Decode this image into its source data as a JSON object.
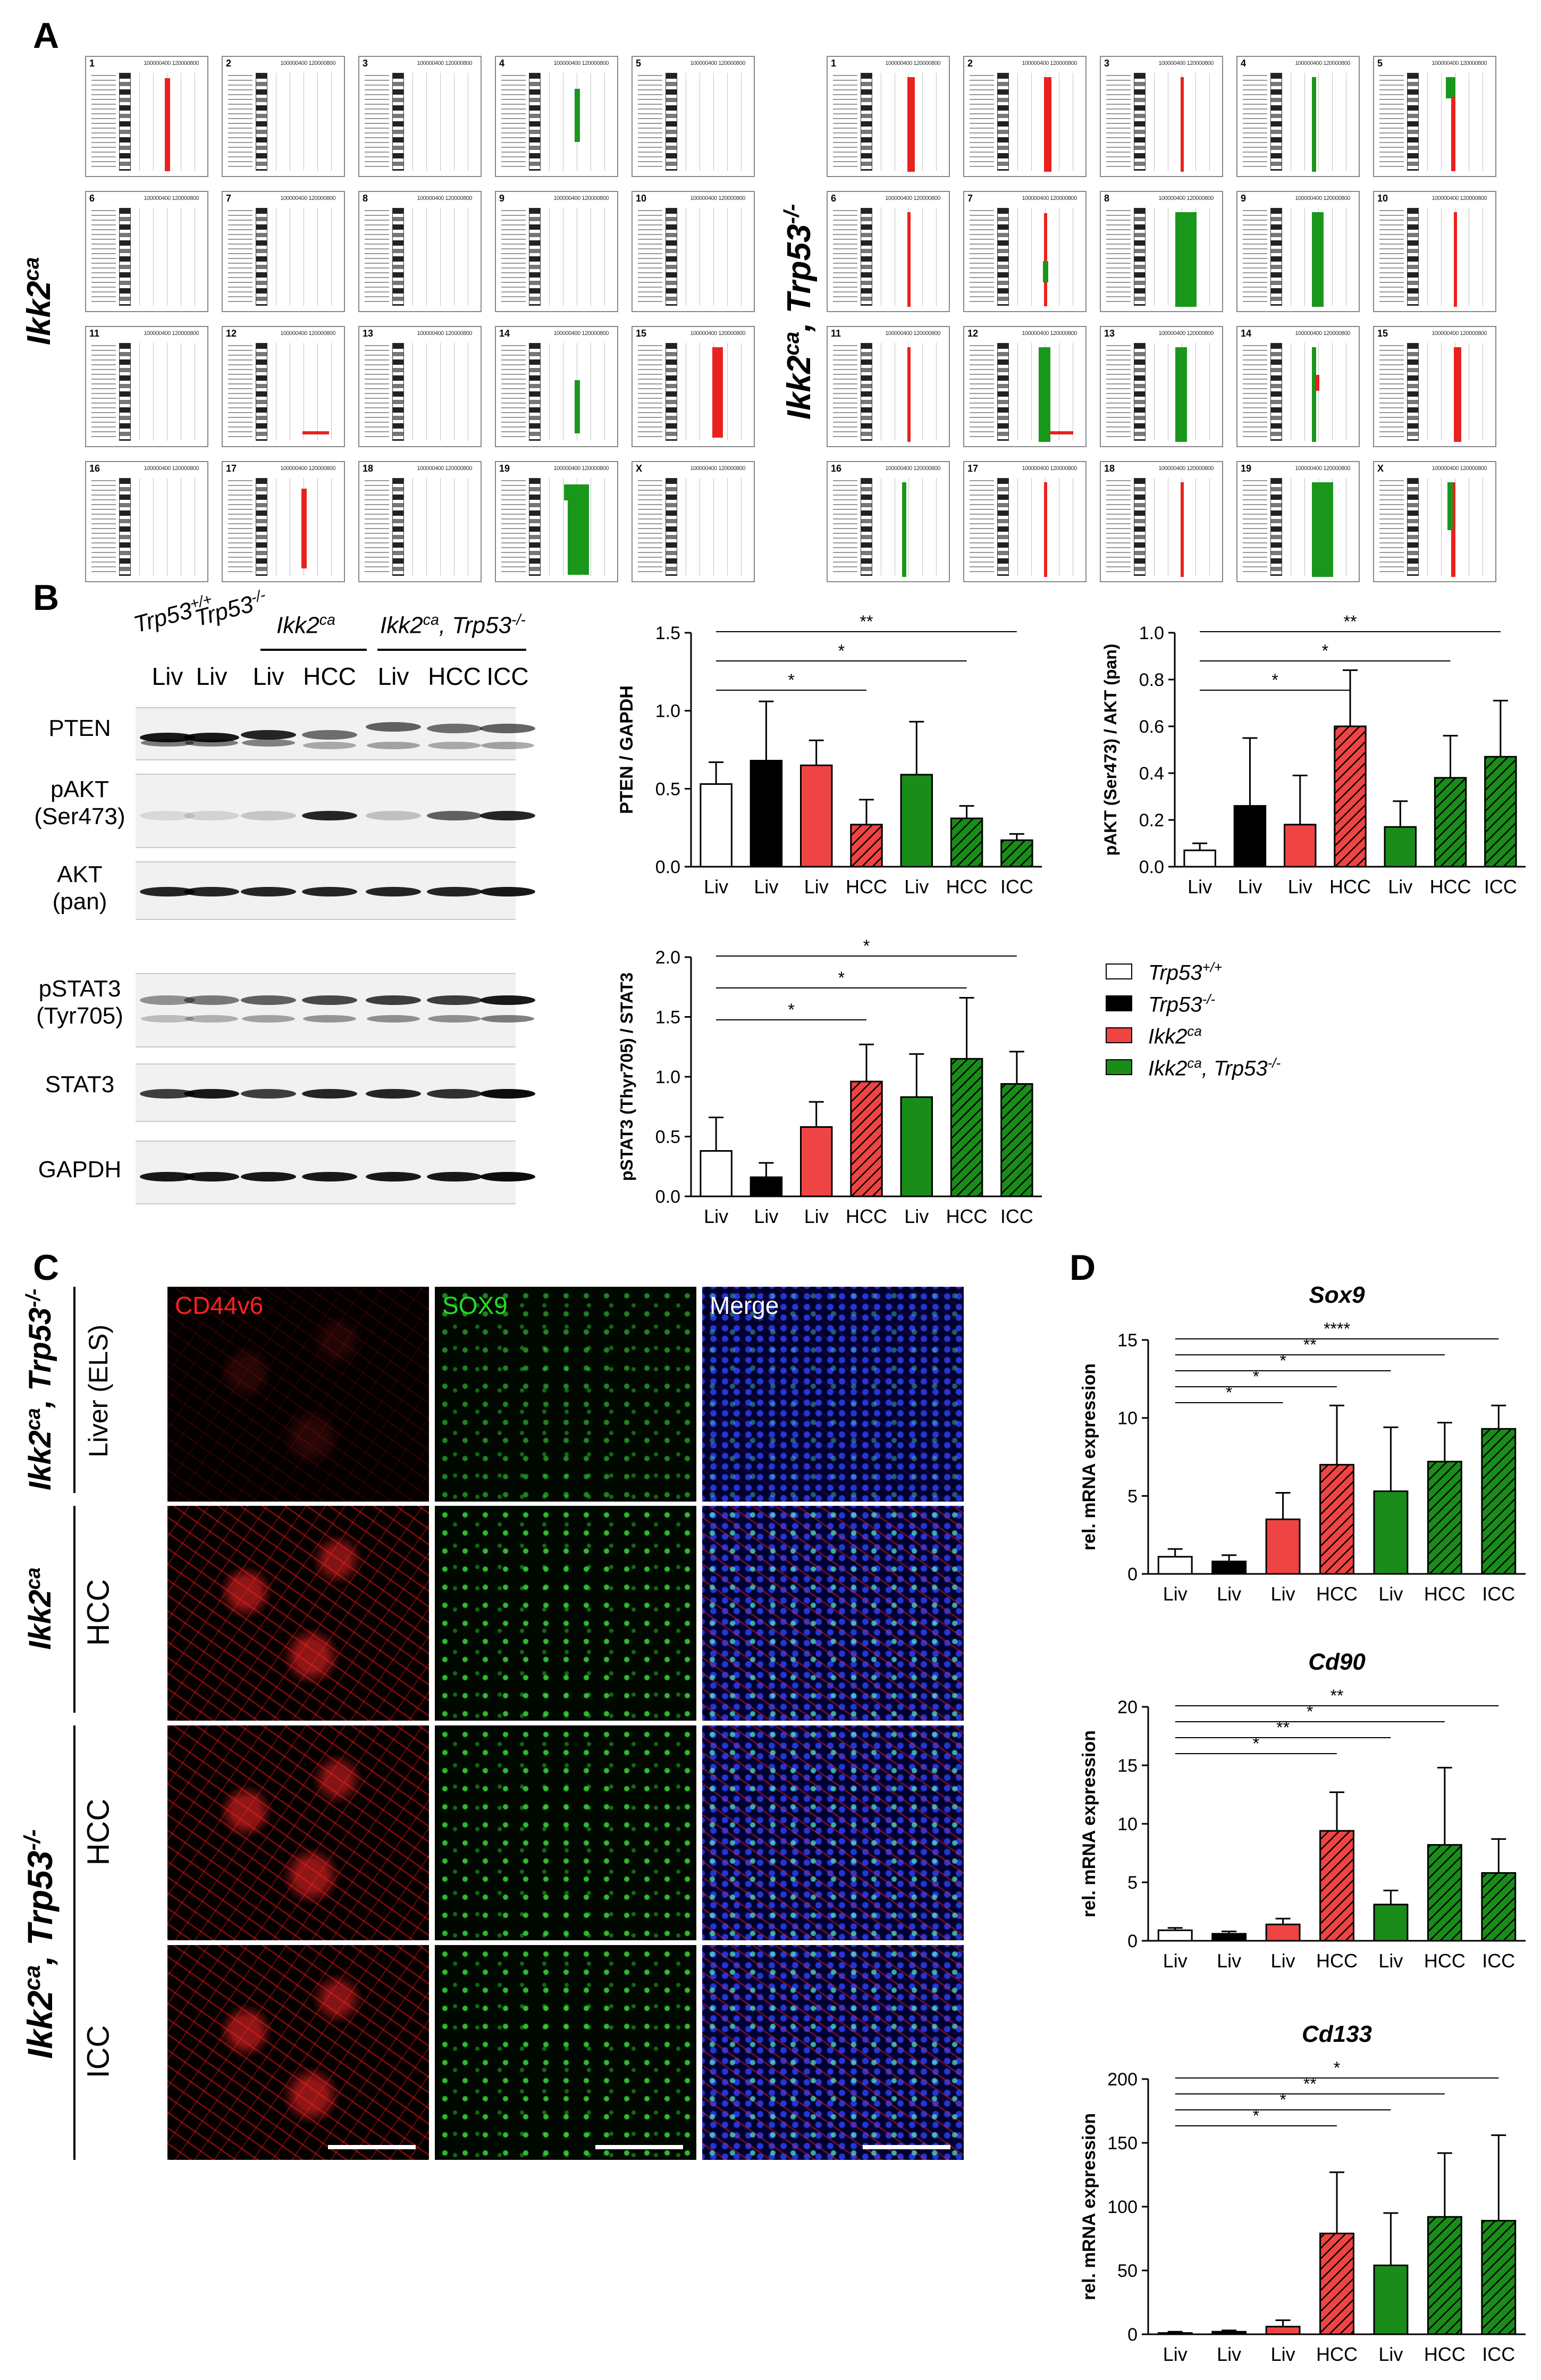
{
  "panels": {
    "a": "A",
    "b": "B",
    "c": "C",
    "d": "D"
  },
  "panelA": {
    "left_genotype": "Ikk2ca",
    "right_genotype": "Ikk2ca, Trp53-/-",
    "scale_text": "100000400 120000800",
    "chromosomes": [
      "1",
      "2",
      "3",
      "4",
      "5",
      "6",
      "7",
      "8",
      "9",
      "10",
      "11",
      "12",
      "13",
      "14",
      "15",
      "16",
      "17",
      "18",
      "19",
      "X"
    ],
    "left_calls": [
      {
        "chr": "1",
        "type": "gain",
        "color": "#e8231f"
      },
      {
        "chr": "4",
        "type": "loss",
        "color": "#19971b"
      },
      {
        "chr": "12",
        "type": "gain",
        "color": "#e8231f"
      },
      {
        "chr": "14",
        "type": "loss",
        "color": "#19971b"
      },
      {
        "chr": "15",
        "type": "gain",
        "color": "#e8231f"
      },
      {
        "chr": "17",
        "type": "gain",
        "color": "#e8231f"
      },
      {
        "chr": "19",
        "type": "loss",
        "color": "#19971b"
      }
    ],
    "colors": {
      "gain": "#e8231f",
      "loss": "#19971b"
    }
  },
  "panelB": {
    "western": {
      "genotypes": [
        "Trp53+/+",
        "Trp53-/-",
        "Ikk2ca",
        "Ikk2ca, Trp53-/-"
      ],
      "lanes": [
        "Liv",
        "Liv",
        "Liv",
        "HCC",
        "Liv",
        "HCC",
        "ICC"
      ],
      "proteins": [
        "PTEN",
        "pAKT\n(Ser473)",
        "AKT\n(pan)",
        "pSTAT3\n(Tyr705)",
        "STAT3",
        "GAPDH"
      ]
    },
    "legend": [
      {
        "label": "Trp53+/+",
        "fill": "#ffffff",
        "hatch": false
      },
      {
        "label": "Trp53-/-",
        "fill": "#000000",
        "hatch": false
      },
      {
        "label": "Ikk2ca",
        "fill": "#ef4444",
        "hatch": false
      },
      {
        "label": "Ikk2ca, Trp53-/-",
        "fill": "#1a8c1a",
        "hatch": false
      }
    ]
  },
  "panelC": {
    "channels": [
      "CD44v6",
      "SOX9",
      "Merge"
    ],
    "channel_colors": {
      "CD44v6": "#ff2020",
      "SOX9": "#22dd22",
      "Merge": "#ffffff"
    },
    "rows": [
      {
        "genotype": "Ikk2ca, Trp53-/-",
        "tissue": "Liver (ELS)"
      },
      {
        "genotype": "Ikk2ca",
        "tissue": "HCC"
      },
      {
        "genotype": "Ikk2ca, Trp53-/-",
        "tissue": "HCC"
      },
      {
        "genotype": "Ikk2ca, Trp53-/-",
        "tissue": "ICC"
      }
    ],
    "group_labels": [
      "Ikk2ca, Trp53-/-",
      "Ikk2ca",
      "Ikk2ca, Trp53-/-"
    ]
  },
  "chart_data": [
    {
      "type": "bar",
      "id": "pten",
      "categories": [
        "Liv",
        "Liv",
        "Liv",
        "HCC",
        "Liv",
        "HCC",
        "ICC"
      ],
      "values": [
        0.53,
        0.68,
        0.65,
        0.27,
        0.59,
        0.31,
        0.17
      ],
      "errors": [
        0.14,
        0.38,
        0.16,
        0.16,
        0.34,
        0.08,
        0.04
      ],
      "ylabel": "PTEN / GAPDH",
      "ylim": [
        0,
        1.5
      ],
      "yticks": [
        "0.0",
        "0.5",
        "1.0",
        "1.5"
      ],
      "significance": [
        {
          "from": 0,
          "to": 3,
          "label": "*"
        },
        {
          "from": 0,
          "to": 5,
          "label": "*"
        },
        {
          "from": 0,
          "to": 6,
          "label": "**"
        }
      ]
    },
    {
      "type": "bar",
      "id": "pakt",
      "categories": [
        "Liv",
        "Liv",
        "Liv",
        "HCC",
        "Liv",
        "HCC",
        "ICC"
      ],
      "values": [
        0.07,
        0.26,
        0.18,
        0.6,
        0.17,
        0.38,
        0.47
      ],
      "errors": [
        0.03,
        0.29,
        0.21,
        0.24,
        0.11,
        0.18,
        0.24
      ],
      "ylabel": "pAKT (Ser473) / AKT (pan)",
      "ylim": [
        0,
        1.0
      ],
      "yticks": [
        "0.0",
        "0.2",
        "0.4",
        "0.6",
        "0.8",
        "1.0"
      ],
      "significance": [
        {
          "from": 0,
          "to": 3,
          "label": "*"
        },
        {
          "from": 0,
          "to": 5,
          "label": "*"
        },
        {
          "from": 0,
          "to": 6,
          "label": "**"
        }
      ]
    },
    {
      "type": "bar",
      "id": "pstat3",
      "categories": [
        "Liv",
        "Liv",
        "Liv",
        "HCC",
        "Liv",
        "HCC",
        "ICC"
      ],
      "values": [
        0.38,
        0.16,
        0.58,
        0.96,
        0.83,
        1.15,
        0.94
      ],
      "errors": [
        0.28,
        0.12,
        0.21,
        0.31,
        0.36,
        0.51,
        0.27
      ],
      "ylabel": "pSTAT3 (Thyr705) / STAT3",
      "ylim": [
        0,
        2.0
      ],
      "yticks": [
        "0.0",
        "0.5",
        "1.0",
        "1.5",
        "2.0"
      ],
      "significance": [
        {
          "from": 0,
          "to": 3,
          "label": "*"
        },
        {
          "from": 0,
          "to": 5,
          "label": "*"
        },
        {
          "from": 0,
          "to": 6,
          "label": "*"
        }
      ]
    },
    {
      "type": "bar",
      "id": "sox9",
      "title": "Sox9",
      "categories": [
        "Liv",
        "Liv",
        "Liv",
        "HCC",
        "Liv",
        "HCC",
        "ICC"
      ],
      "values": [
        1.1,
        0.8,
        3.5,
        7.0,
        5.3,
        7.2,
        9.3
      ],
      "errors": [
        0.5,
        0.4,
        1.7,
        3.8,
        4.1,
        2.5,
        1.5
      ],
      "ylabel": "rel. mRNA expression",
      "ylim": [
        0,
        15
      ],
      "yticks": [
        "0",
        "5",
        "10",
        "15"
      ],
      "significance": [
        {
          "from": 0,
          "to": 2,
          "label": "*"
        },
        {
          "from": 0,
          "to": 3,
          "label": "*"
        },
        {
          "from": 0,
          "to": 4,
          "label": "*"
        },
        {
          "from": 0,
          "to": 5,
          "label": "**"
        },
        {
          "from": 0,
          "to": 6,
          "label": "****"
        }
      ]
    },
    {
      "type": "bar",
      "id": "cd90",
      "title": "Cd90",
      "categories": [
        "Liv",
        "Liv",
        "Liv",
        "HCC",
        "Liv",
        "HCC",
        "ICC"
      ],
      "values": [
        0.9,
        0.6,
        1.4,
        9.4,
        3.1,
        8.2,
        5.8
      ],
      "errors": [
        0.2,
        0.2,
        0.5,
        3.3,
        1.2,
        6.6,
        2.9
      ],
      "ylabel": "rel. mRNA expression",
      "ylim": [
        0,
        20
      ],
      "yticks": [
        "0",
        "5",
        "10",
        "15",
        "20"
      ],
      "significance": [
        {
          "from": 0,
          "to": 3,
          "label": "*"
        },
        {
          "from": 0,
          "to": 4,
          "label": "**"
        },
        {
          "from": 0,
          "to": 5,
          "label": "*"
        },
        {
          "from": 0,
          "to": 6,
          "label": "**"
        }
      ]
    },
    {
      "type": "bar",
      "id": "cd133",
      "title": "Cd133",
      "categories": [
        "Liv",
        "Liv",
        "Liv",
        "HCC",
        "Liv",
        "HCC",
        "ICC"
      ],
      "values": [
        1,
        2,
        6,
        79,
        54,
        92,
        89
      ],
      "errors": [
        1,
        1,
        5,
        48,
        41,
        50,
        67
      ],
      "ylabel": "rel. mRNA expression",
      "ylim": [
        0,
        200
      ],
      "yticks": [
        "0",
        "50",
        "100",
        "150",
        "200"
      ],
      "significance": [
        {
          "from": 0,
          "to": 3,
          "label": "*"
        },
        {
          "from": 0,
          "to": 4,
          "label": "*"
        },
        {
          "from": 0,
          "to": 5,
          "label": "**"
        },
        {
          "from": 0,
          "to": 6,
          "label": "*"
        }
      ]
    }
  ]
}
